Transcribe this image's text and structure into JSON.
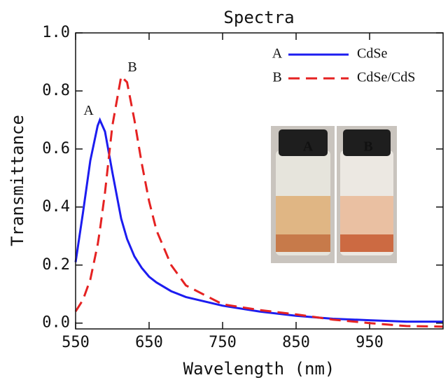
{
  "chart_data": {
    "type": "line",
    "title": "Spectra",
    "xlabel": "Wavelength (nm)",
    "ylabel": "Transmittance",
    "x": [
      550,
      560,
      570,
      580,
      583,
      590,
      600,
      612,
      620,
      630,
      640,
      650,
      660,
      680,
      700,
      750,
      800,
      850,
      900,
      950,
      1000,
      1050
    ],
    "series": [
      {
        "name": "CdSe",
        "label": "A",
        "color": "#1c1cf0",
        "dash": false,
        "values": [
          0.21,
          0.38,
          0.56,
          0.68,
          0.7,
          0.66,
          0.52,
          0.36,
          0.29,
          0.23,
          0.19,
          0.16,
          0.14,
          0.11,
          0.09,
          0.06,
          0.04,
          0.025,
          0.015,
          0.01,
          0.005,
          0.005
        ]
      },
      {
        "name": "CdSe/CdS",
        "label": "B",
        "color": "#e52222",
        "dash": true,
        "values": [
          0.04,
          0.08,
          0.15,
          0.27,
          0.32,
          0.45,
          0.68,
          0.85,
          0.83,
          0.7,
          0.55,
          0.42,
          0.32,
          0.2,
          0.13,
          0.065,
          0.045,
          0.03,
          0.012,
          0.0,
          -0.01,
          -0.012
        ]
      }
    ],
    "xlim": [
      550,
      1050
    ],
    "xticks": [
      550,
      650,
      750,
      850,
      950
    ],
    "ylim": [
      -0.02,
      1.0
    ],
    "yticks": [
      {
        "value": 0,
        "label": "0.0"
      },
      0.2,
      0.4,
      0.6,
      0.8,
      {
        "value": 1,
        "label": "1.0"
      }
    ],
    "grid": false,
    "legend": "upper right"
  }
}
